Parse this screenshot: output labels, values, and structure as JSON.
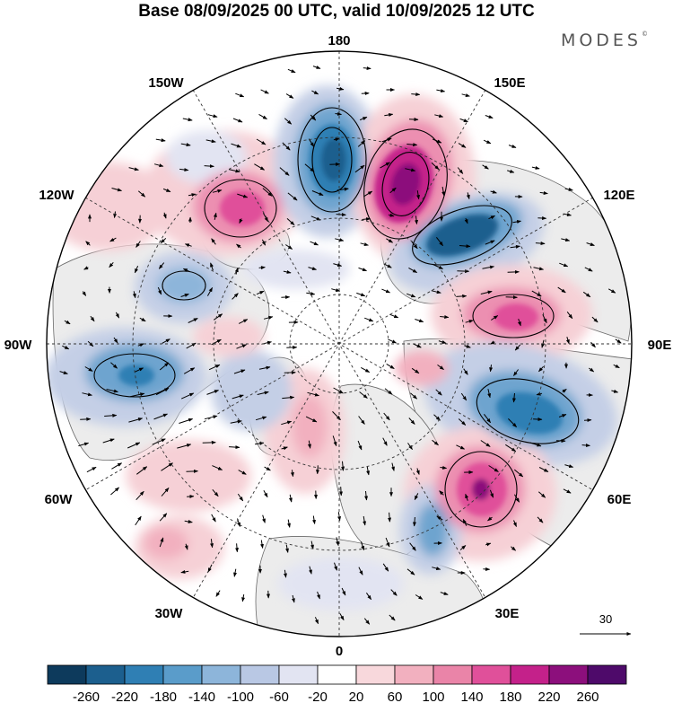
{
  "title": "Base 08/09/2025 00 UTC, valid 10/09/2025 12 UTC",
  "brand": "MODES",
  "brand_mark": "©",
  "longitude_labels": {
    "lon_180": "180",
    "lon_150e": "150E",
    "lon_120e": "120E",
    "lon_90e": "90E",
    "lon_60e": "60E",
    "lon_30e": "30E",
    "lon_0": "0",
    "lon_30w": "30W",
    "lon_60w": "60W",
    "lon_90w": "90W",
    "lon_120w": "120W",
    "lon_150w": "150W"
  },
  "vector_reference": {
    "label": "30"
  },
  "colorbar": {
    "ticks": [
      "-260",
      "-220",
      "-180",
      "-140",
      "-100",
      "-60",
      "-20",
      "20",
      "60",
      "100",
      "140",
      "180",
      "220",
      "260"
    ],
    "colors": [
      "#0d3a5c",
      "#1c5f8e",
      "#2f7fb4",
      "#5a9cca",
      "#8db5da",
      "#b9c8e4",
      "#e2e4f2",
      "#ffffff",
      "#f8d8dc",
      "#f2b0bf",
      "#ea84a8",
      "#e0509a",
      "#c4218a",
      "#8c0f7c",
      "#4e0a6a"
    ]
  },
  "colors": {
    "pos_light": "#f6d0d6",
    "pos_mid": "#ec8fb1",
    "pos_strong": "#c4218a",
    "pos_max": "#8c0f7c",
    "neg_light": "#c4cfe6",
    "neg_mid": "#6ea4cf",
    "neg_strong": "#2f7fb4",
    "neg_max": "#1c5f8e",
    "land": "#ececec"
  }
}
